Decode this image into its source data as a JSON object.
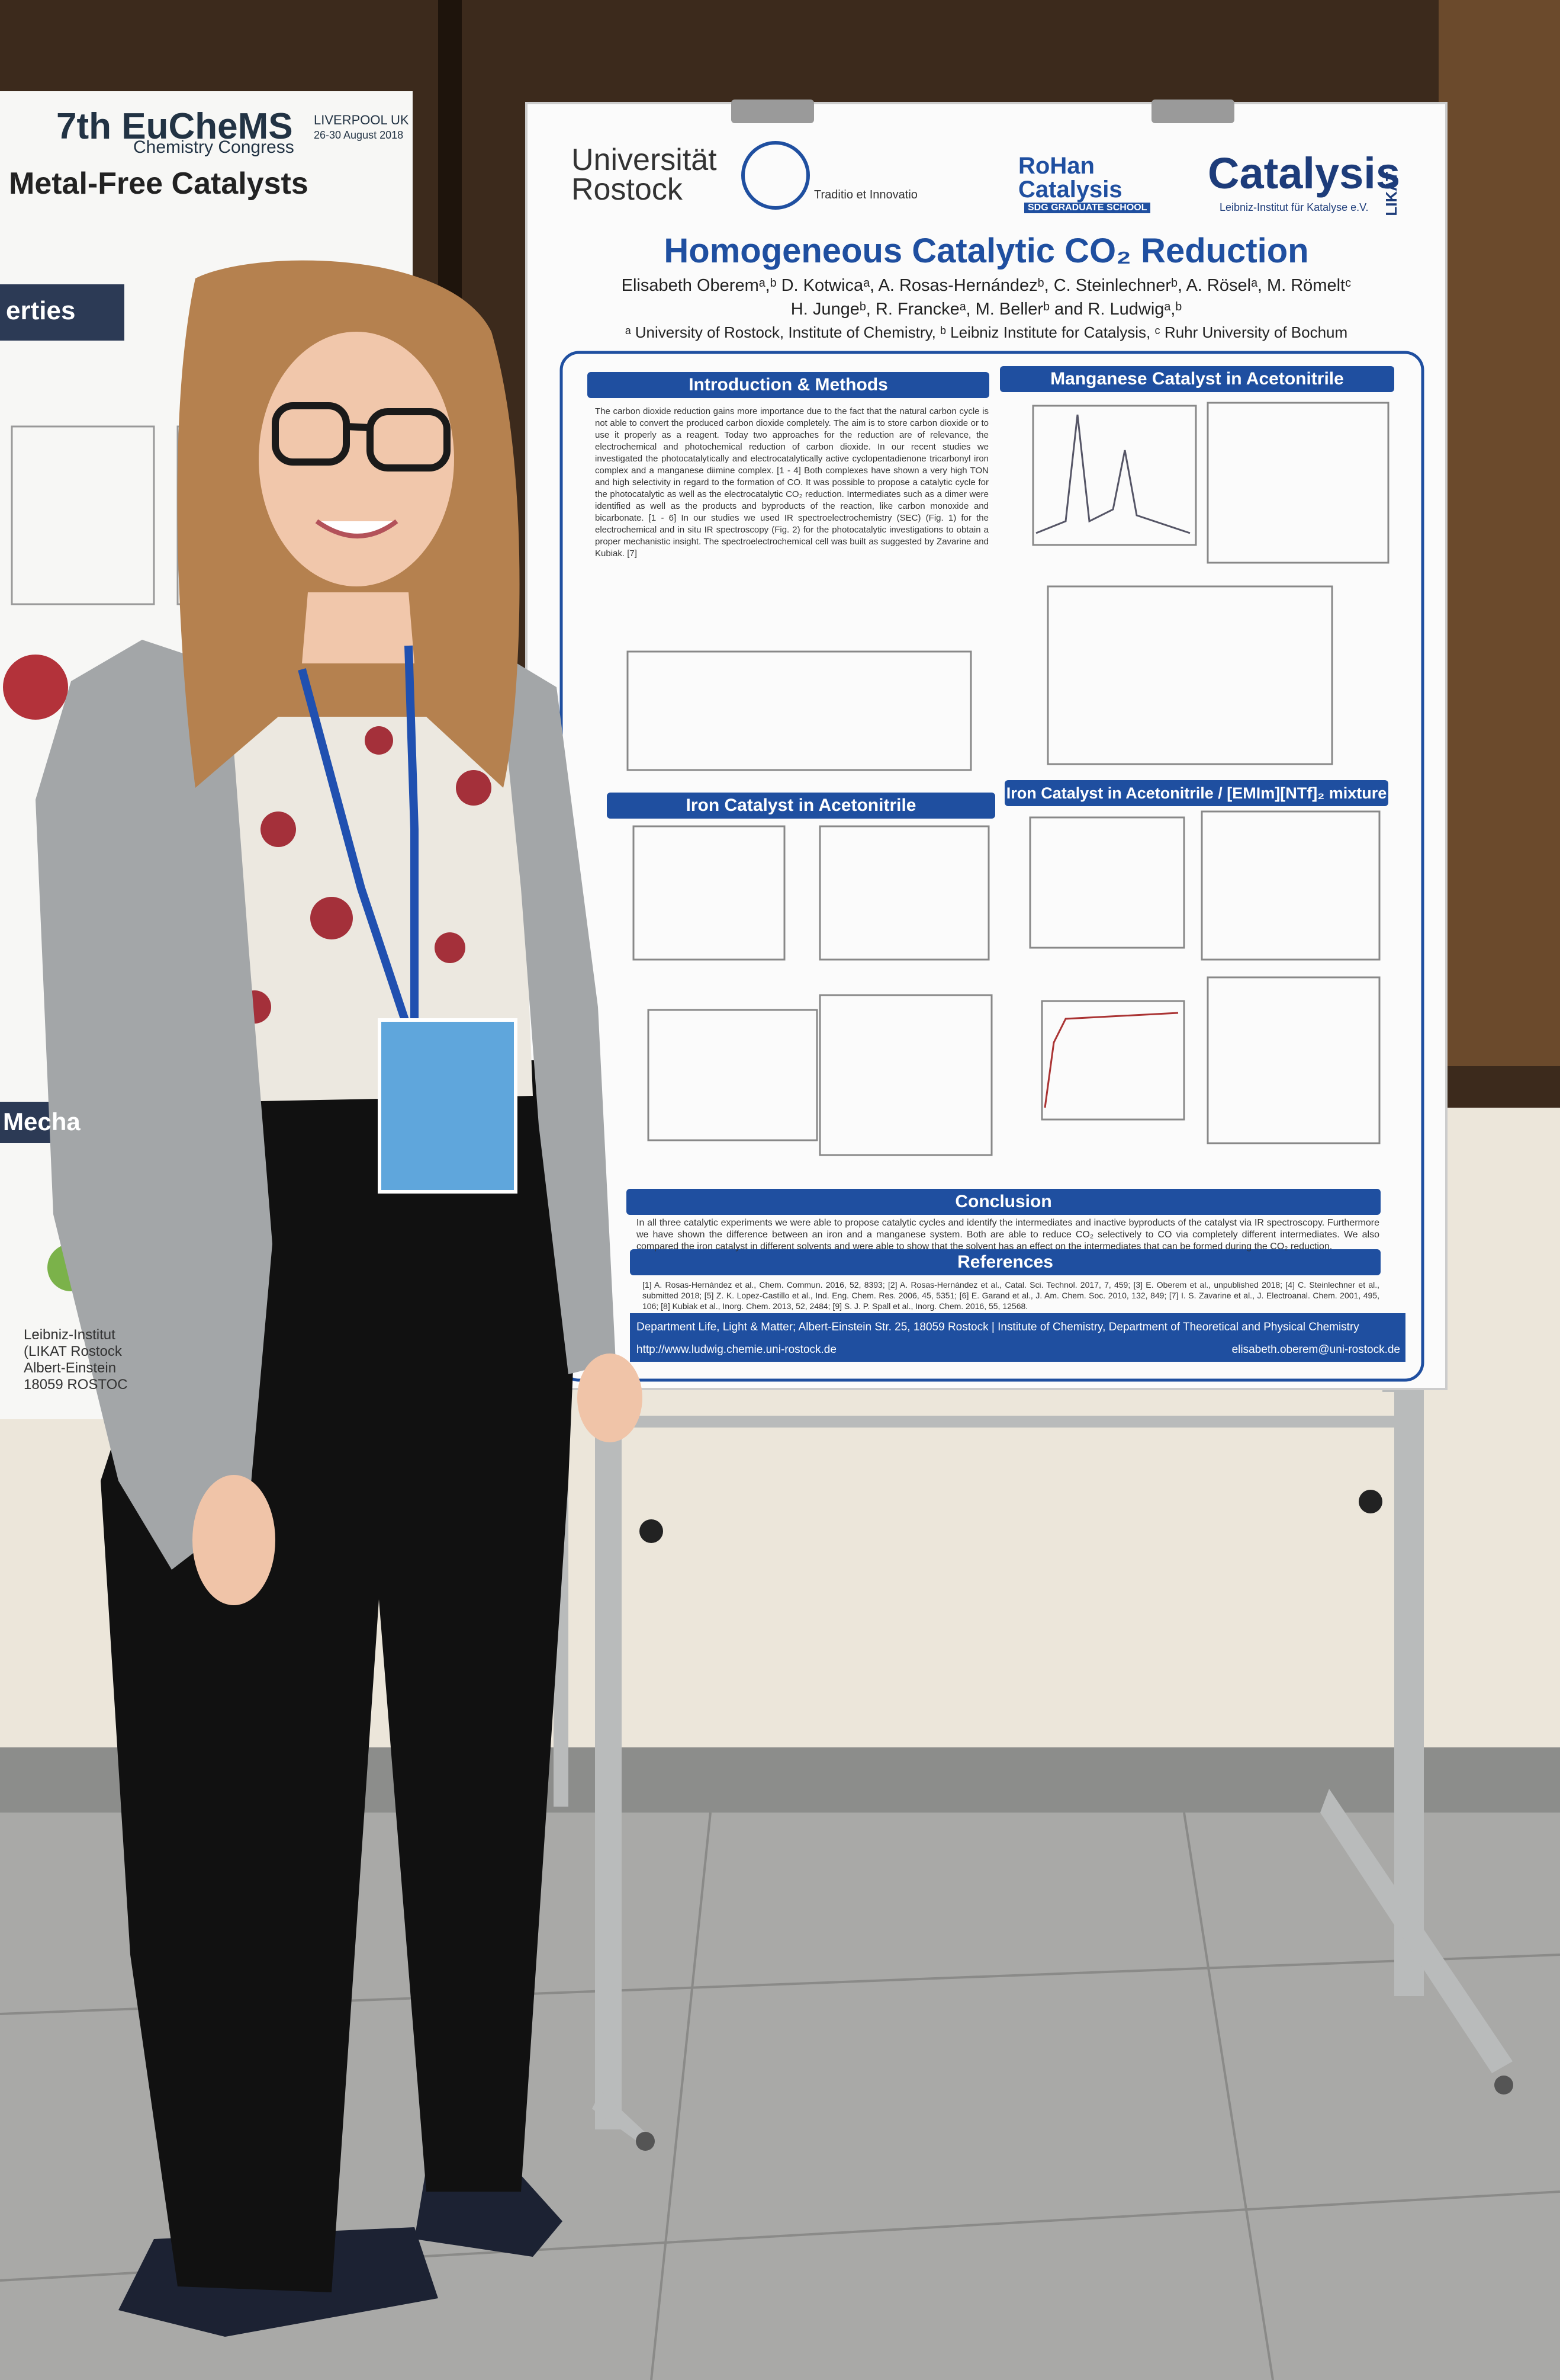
{
  "left_poster": {
    "header_line_1": "7th EuCheMS",
    "header_line_2": "Chemistry Congress",
    "event_place": "LIVERPOOL UK",
    "event_date": "26-30 August 2018",
    "title": "Metal-Free Catalysts",
    "section_1": "erties",
    "section_2": "Mecha",
    "footer": [
      "Leibniz-Institut",
      "(LIKAT Rostock",
      "Albert-Einstein",
      "18059 ROSTOC"
    ]
  },
  "poster": {
    "logos": {
      "university": "Universität Rostock",
      "motto": "Traditio et Innovatio",
      "rohan": "RoHan Catalysis",
      "rohan_sub": "SDG GRADUATE SCHOOL",
      "catalysis": "Catalysis",
      "likat_sub": "Leibniz-Institut für Katalyse e.V.",
      "likat": "LIKAT"
    },
    "title": "Homogeneous Catalytic CO₂ Reduction",
    "authors_line_1": "Elisabeth Oberemᵃ,ᵇ D. Kotwicaᵃ, A. Rosas-Hernándezᵇ, C. Steinlechnerᵇ, A. Röselᵃ, M. Römeltᶜ",
    "authors_line_2": "H. Jungeᵇ, R. Franckeᵃ, M. Bellerᵇ and R. Ludwigᵃ,ᵇ",
    "affiliations": "ᵃ University of Rostock, Institute of Chemistry, ᵇ Leibniz Institute for Catalysis, ᶜ Ruhr University of Bochum",
    "sections": {
      "intro": "Introduction & Methods",
      "manganese": "Manganese Catalyst in Acetonitrile",
      "iron": "Iron Catalyst in Acetonitrile",
      "iron_mixture": "Iron Catalyst in Acetonitrile / [EMIm][NTf]₂ mixture",
      "conclusion": "Conclusion",
      "references": "References"
    },
    "intro_text": "The carbon dioxide reduction gains more importance due to the fact that the natural carbon cycle is not able to convert the produced carbon dioxide completely. The aim is to store carbon dioxide or to use it properly as a reagent. Today two approaches for the reduction are of relevance, the electrochemical and photochemical reduction of carbon dioxide. In our recent studies we investigated the photocatalytically and electrocatalytically active cyclopentadienone tricarbonyl iron complex and a manganese diimine complex. [1 - 4] Both complexes have shown a very high TON and high selectivity in regard to the formation of CO. It was possible to propose a catalytic cycle for the photocatalytic as well as the electrocatalytic CO₂ reduction. Intermediates such as a dimer were identified as well as the products and byproducts of the reaction, like carbon monoxide and bicarbonate. [1 - 6] In our studies we used IR spectroelectrochemistry (SEC) (Fig. 1) for the electrochemical and in situ IR spectroscopy (Fig. 2) for the photocatalytic investigations to obtain a proper mechanistic insight. The spectroelectrochemical cell was built as suggested by Zavarine and Kubiak. [7]",
    "conclusion_text": "In all three catalytic experiments we were able to propose catalytic cycles and identify the intermediates and inactive byproducts of the catalyst via IR spectroscopy. Furthermore we have shown the difference between an iron and a manganese system. Both are able to reduce CO₂ selectively to CO via completely different intermediates. We also compared the iron catalyst in different solvents and were able to show that the solvent has an effect on the intermediates that can be formed during the CO₂ reduction.",
    "references_text": "[1] A. Rosas-Hernández et al., Chem. Commun. 2016, 52, 8393; [2] A. Rosas-Hernández et al., Catal. Sci. Technol. 2017, 7, 459; [3] E. Oberem et al., unpublished 2018; [4] C. Steinlechner et al., submitted 2018; [5] Z. K. Lopez-Castillo et al., Ind. Eng. Chem. Res. 2006, 45, 5351; [6] E. Garand et al., J. Am. Chem. Soc. 2010, 132, 849; [7] I. S. Zavarine et al., J. Electroanal. Chem. 2001, 495, 106; [8] Kubiak et al., Inorg. Chem. 2013, 52, 2484; [9] S. J. P. Spall et al., Inorg. Chem. 2016, 55, 12568.",
    "footer_address": "Department Life, Light & Matter; Albert-Einstein Str. 25, 18059 Rostock | Institute of Chemistry, Department of Theoretical and Physical Chemistry",
    "footer_url": "http://www.ludwig.chemie.uni-rostock.de",
    "footer_email": "elisabeth.oberem@uni-rostock.de"
  }
}
